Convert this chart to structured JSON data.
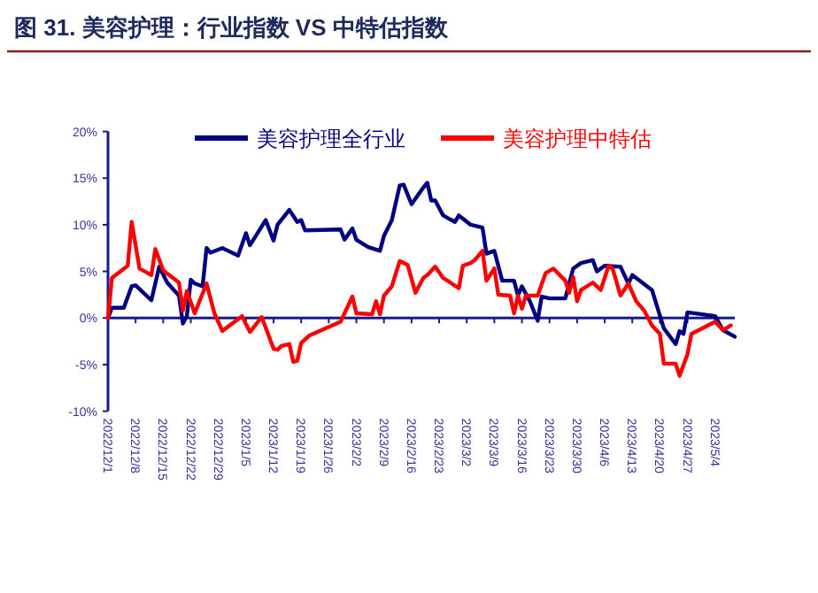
{
  "chart_data": {
    "type": "line",
    "title": "图 31. 美容护理：行业指数 VS 中特估指数",
    "legend": "top",
    "grid": false,
    "ref_lines": [
      {
        "axis": "y",
        "value": 0,
        "color": "#1a1a8c",
        "line_style": "solid"
      }
    ],
    "marker": "none",
    "line_style": "solid",
    "xlim": [
      "2022-12-01",
      "2023-05-09"
    ],
    "xticks": [
      {
        "value": "2022-12-01",
        "label": "2022/12/1"
      },
      {
        "value": "2022-12-08",
        "label": "2022/12/8"
      },
      {
        "value": "2022-12-15",
        "label": "2022/12/15"
      },
      {
        "value": "2022-12-22",
        "label": "2022/12/22"
      },
      {
        "value": "2022-12-29",
        "label": "2022/12/29"
      },
      {
        "value": "2023-01-05",
        "label": "2023/1/5"
      },
      {
        "value": "2023-01-12",
        "label": "2023/1/12"
      },
      {
        "value": "2023-01-19",
        "label": "2023/1/19"
      },
      {
        "value": "2023-01-26",
        "label": "2023/1/26"
      },
      {
        "value": "2023-02-02",
        "label": "2023/2/2"
      },
      {
        "value": "2023-02-09",
        "label": "2023/2/9"
      },
      {
        "value": "2023-02-16",
        "label": "2023/2/16"
      },
      {
        "value": "2023-02-23",
        "label": "2023/2/23"
      },
      {
        "value": "2023-03-02",
        "label": "2023/3/2"
      },
      {
        "value": "2023-03-09",
        "label": "2023/3/9"
      },
      {
        "value": "2023-03-16",
        "label": "2023/3/16"
      },
      {
        "value": "2023-03-23",
        "label": "2023/3/23"
      },
      {
        "value": "2023-03-30",
        "label": "2023/3/30"
      },
      {
        "value": "2023-04-06",
        "label": "2023/4/6"
      },
      {
        "value": "2023-04-13",
        "label": "2023/4/13"
      },
      {
        "value": "2023-04-20",
        "label": "2023/4/20"
      },
      {
        "value": "2023-04-27",
        "label": "2023/4/27"
      },
      {
        "value": "2023-05-04",
        "label": "2023/5/4"
      }
    ],
    "ylim": [
      -10,
      20
    ],
    "yticks": [
      {
        "value": -10,
        "label": "-10%"
      },
      {
        "value": -5,
        "label": "-5%"
      },
      {
        "value": 0,
        "label": "0%"
      },
      {
        "value": 5,
        "label": "5%"
      },
      {
        "value": 10,
        "label": "10%"
      },
      {
        "value": 15,
        "label": "15%"
      },
      {
        "value": 20,
        "label": "20%"
      }
    ],
    "series": [
      {
        "name": "美容护理全行业",
        "color": "#000080",
        "x": [
          "2022-12-01",
          "2022-12-02",
          "2022-12-05",
          "2022-12-07",
          "2022-12-08",
          "2022-12-12",
          "2022-12-14",
          "2022-12-16",
          "2022-12-19",
          "2022-12-20",
          "2022-12-21",
          "2022-12-22",
          "2022-12-23",
          "2022-12-25",
          "2022-12-26",
          "2022-12-27",
          "2022-12-30",
          "2023-01-03",
          "2023-01-05",
          "2023-01-06",
          "2023-01-10",
          "2023-01-12",
          "2023-01-13",
          "2023-01-16",
          "2023-01-18",
          "2023-01-19",
          "2023-01-20",
          "2023-01-29",
          "2023-01-30",
          "2023-02-01",
          "2023-02-02",
          "2023-02-05",
          "2023-02-08",
          "2023-02-09",
          "2023-02-11",
          "2023-02-13",
          "2023-02-14",
          "2023-02-16",
          "2023-02-19",
          "2023-02-20",
          "2023-02-21",
          "2023-02-22",
          "2023-02-24",
          "2023-02-27",
          "2023-02-28",
          "2023-03-03",
          "2023-03-06",
          "2023-03-07",
          "2023-03-09",
          "2023-03-11",
          "2023-03-14",
          "2023-03-15",
          "2023-03-16",
          "2023-03-18",
          "2023-03-20",
          "2023-03-21",
          "2023-03-23",
          "2023-03-27",
          "2023-03-29",
          "2023-03-31",
          "2023-04-03",
          "2023-04-04",
          "2023-04-06",
          "2023-04-10",
          "2023-04-12",
          "2023-04-13",
          "2023-04-18",
          "2023-04-21",
          "2023-04-24",
          "2023-04-25",
          "2023-04-26",
          "2023-04-27",
          "2023-05-04",
          "2023-05-06",
          "2023-05-09"
        ],
        "values": [
          0,
          1.1,
          1.1,
          3.4,
          3.5,
          1.9,
          5.5,
          3.8,
          2.4,
          -0.6,
          0.2,
          4.1,
          3.7,
          3.4,
          7.5,
          7.0,
          7.5,
          6.7,
          9.1,
          7.8,
          10.5,
          8.3,
          10.0,
          11.6,
          10.3,
          10.5,
          9.4,
          9.5,
          8.4,
          9.6,
          8.4,
          7.6,
          7.2,
          8.8,
          10.5,
          14.2,
          14.3,
          12.2,
          14.0,
          14.5,
          12.6,
          12.6,
          11.0,
          10.3,
          11.0,
          10.0,
          9.7,
          6.9,
          7.2,
          4.0,
          4.0,
          2.4,
          3.4,
          1.8,
          -0.3,
          2.3,
          2.1,
          2.1,
          5.3,
          5.9,
          6.2,
          5.0,
          5.6,
          5.5,
          3.7,
          4.6,
          3.0,
          -1.1,
          -2.8,
          -1.4,
          -1.7,
          0.6,
          0.2,
          -1.3,
          -2.0
        ]
      },
      {
        "name": "美容护理中特估",
        "color": "#ff0000",
        "x": [
          "2022-12-01",
          "2022-12-02",
          "2022-12-06",
          "2022-12-07",
          "2022-12-09",
          "2022-12-12",
          "2022-12-13",
          "2022-12-15",
          "2022-12-19",
          "2022-12-20",
          "2022-12-21",
          "2022-12-23",
          "2022-12-26",
          "2022-12-28",
          "2022-12-30",
          "2023-01-04",
          "2023-01-06",
          "2023-01-09",
          "2023-01-12",
          "2023-01-13",
          "2023-01-14",
          "2023-01-16",
          "2023-01-17",
          "2023-01-18",
          "2023-01-19",
          "2023-01-21",
          "2023-01-29",
          "2023-02-01",
          "2023-02-02",
          "2023-02-06",
          "2023-02-07",
          "2023-02-08",
          "2023-02-09",
          "2023-02-11",
          "2023-02-13",
          "2023-02-15",
          "2023-02-17",
          "2023-02-19",
          "2023-02-20",
          "2023-02-22",
          "2023-02-24",
          "2023-02-28",
          "2023-03-01",
          "2023-03-03",
          "2023-03-04",
          "2023-03-06",
          "2023-03-07",
          "2023-03-09",
          "2023-03-10",
          "2023-03-13",
          "2023-03-14",
          "2023-03-15",
          "2023-03-16",
          "2023-03-17",
          "2023-03-20",
          "2023-03-22",
          "2023-03-24",
          "2023-03-27",
          "2023-03-28",
          "2023-03-29",
          "2023-03-30",
          "2023-03-31",
          "2023-04-03",
          "2023-04-05",
          "2023-04-07",
          "2023-04-08",
          "2023-04-10",
          "2023-04-12",
          "2023-04-14",
          "2023-04-16",
          "2023-04-18",
          "2023-04-20",
          "2023-04-21",
          "2023-04-24",
          "2023-04-25",
          "2023-04-27",
          "2023-04-28",
          "2023-05-04",
          "2023-05-06",
          "2023-05-08"
        ],
        "values": [
          0,
          4.3,
          5.6,
          10.3,
          5.3,
          4.6,
          7.4,
          5.1,
          3.8,
          0.8,
          2.9,
          0.5,
          3.7,
          0.5,
          -1.4,
          0.2,
          -1.5,
          0.1,
          -3.3,
          -3.4,
          -3.0,
          -2.8,
          -4.7,
          -4.6,
          -2.7,
          -1.9,
          -0.4,
          2.3,
          0.5,
          0.4,
          1.8,
          0.4,
          2.4,
          3.4,
          6.1,
          5.7,
          2.7,
          4.3,
          4.6,
          5.5,
          4.3,
          3.2,
          5.6,
          5.9,
          6.2,
          7.2,
          4.0,
          5.3,
          2.5,
          2.4,
          0.5,
          2.4,
          1.0,
          2.4,
          2.4,
          4.8,
          5.3,
          4.0,
          2.7,
          4.4,
          1.8,
          3.0,
          3.8,
          3.0,
          5.6,
          5.3,
          2.4,
          3.7,
          1.8,
          0.8,
          -0.8,
          -1.7,
          -4.9,
          -4.9,
          -6.2,
          -3.9,
          -1.7,
          -0.4,
          -1.3,
          -0.8
        ]
      }
    ]
  }
}
